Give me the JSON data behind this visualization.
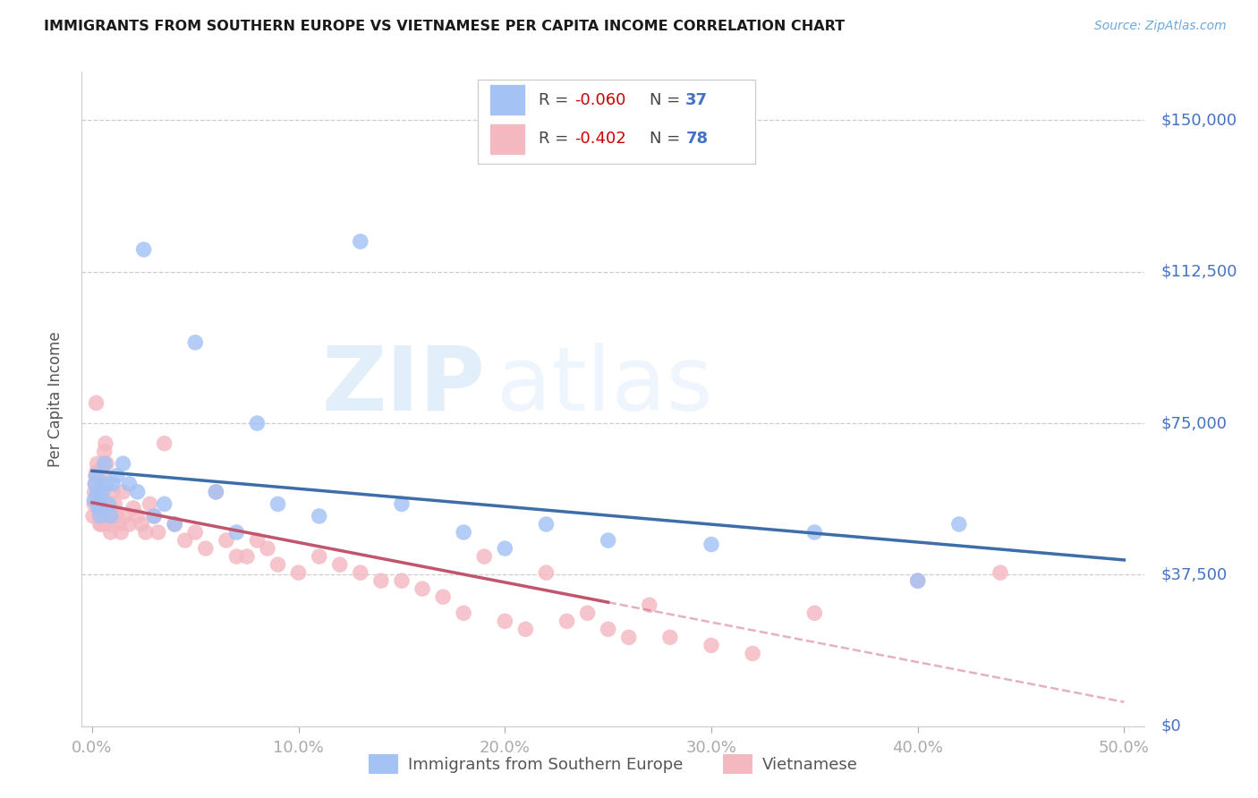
{
  "title": "IMMIGRANTS FROM SOUTHERN EUROPE VS VIETNAMESE PER CAPITA INCOME CORRELATION CHART",
  "source": "Source: ZipAtlas.com",
  "ylabel": "Per Capita Income",
  "xlabel_ticks": [
    "0.0%",
    "10.0%",
    "20.0%",
    "30.0%",
    "40.0%",
    "50.0%"
  ],
  "xlabel_vals": [
    0.0,
    10.0,
    20.0,
    30.0,
    40.0,
    50.0
  ],
  "yticks": [
    0,
    37500,
    75000,
    112500,
    150000
  ],
  "ytick_labels": [
    "$0",
    "$37,500",
    "$75,000",
    "$112,500",
    "$150,000"
  ],
  "ylim": [
    0,
    162000
  ],
  "xlim": [
    -0.5,
    51
  ],
  "blue_color": "#a4c2f4",
  "pink_color": "#f4b8c1",
  "blue_line_color": "#3d6eaa",
  "pink_line_color": "#c2546e",
  "blue_R": "-0.060",
  "blue_N": "37",
  "pink_R": "-0.402",
  "pink_N": "78",
  "legend_label_blue": "Immigrants from Southern Europe",
  "legend_label_pink": "Vietnamese",
  "watermark_zip": "ZIP",
  "watermark_atlas": "atlas",
  "bg_color": "#ffffff",
  "grid_color": "#cccccc",
  "title_color": "#1a1a1a",
  "source_color": "#6fa8dc",
  "right_tick_color": "#4472c4",
  "blue_scatter_x": [
    0.1,
    0.15,
    0.2,
    0.25,
    0.3,
    0.35,
    0.4,
    0.5,
    0.6,
    0.7,
    0.8,
    0.9,
    1.0,
    1.2,
    1.5,
    1.8,
    2.2,
    2.5,
    3.0,
    3.5,
    4.0,
    5.0,
    6.0,
    7.0,
    8.0,
    9.0,
    11.0,
    13.0,
    15.0,
    18.0,
    20.0,
    22.0,
    25.0,
    30.0,
    35.0,
    40.0,
    42.0
  ],
  "blue_scatter_y": [
    56000,
    60000,
    62000,
    58000,
    54000,
    55000,
    52000,
    58000,
    65000,
    60000,
    55000,
    52000,
    60000,
    62000,
    65000,
    60000,
    58000,
    118000,
    52000,
    55000,
    50000,
    95000,
    58000,
    48000,
    75000,
    55000,
    52000,
    120000,
    55000,
    48000,
    44000,
    50000,
    46000,
    45000,
    48000,
    36000,
    50000
  ],
  "pink_scatter_x": [
    0.05,
    0.1,
    0.12,
    0.15,
    0.18,
    0.2,
    0.22,
    0.25,
    0.28,
    0.3,
    0.32,
    0.35,
    0.38,
    0.4,
    0.42,
    0.45,
    0.48,
    0.5,
    0.55,
    0.6,
    0.65,
    0.7,
    0.75,
    0.8,
    0.85,
    0.9,
    0.95,
    1.0,
    1.1,
    1.2,
    1.3,
    1.4,
    1.5,
    1.6,
    1.8,
    2.0,
    2.2,
    2.4,
    2.6,
    2.8,
    3.0,
    3.2,
    3.5,
    4.0,
    4.5,
    5.0,
    5.5,
    6.0,
    6.5,
    7.0,
    7.5,
    8.0,
    8.5,
    9.0,
    10.0,
    11.0,
    12.0,
    13.0,
    14.0,
    15.0,
    16.0,
    17.0,
    18.0,
    19.0,
    20.0,
    21.0,
    22.0,
    23.0,
    24.0,
    25.0,
    26.0,
    27.0,
    28.0,
    30.0,
    32.0,
    35.0,
    40.0,
    44.0
  ],
  "pink_scatter_y": [
    52000,
    55000,
    58000,
    60000,
    62000,
    80000,
    63000,
    65000,
    58000,
    55000,
    54000,
    52000,
    50000,
    56000,
    60000,
    54000,
    50000,
    56000,
    62000,
    68000,
    70000,
    65000,
    55000,
    52000,
    50000,
    48000,
    54000,
    58000,
    55000,
    52000,
    50000,
    48000,
    58000,
    52000,
    50000,
    54000,
    52000,
    50000,
    48000,
    55000,
    52000,
    48000,
    70000,
    50000,
    46000,
    48000,
    44000,
    58000,
    46000,
    42000,
    42000,
    46000,
    44000,
    40000,
    38000,
    42000,
    40000,
    38000,
    36000,
    36000,
    34000,
    32000,
    28000,
    42000,
    26000,
    24000,
    38000,
    26000,
    28000,
    24000,
    22000,
    30000,
    22000,
    20000,
    18000,
    28000,
    36000,
    38000
  ]
}
